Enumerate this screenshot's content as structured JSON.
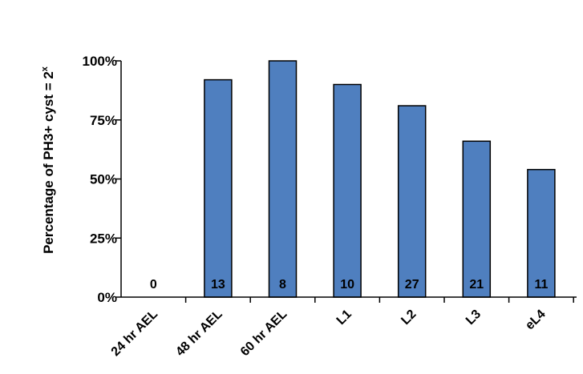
{
  "chart_data": {
    "type": "bar",
    "title": "",
    "xlabel": "",
    "ylabel": "Percentage of PH3+ cyst = 2",
    "ylabel_superscript": "x",
    "categories": [
      "24 hr AEL",
      "48 hr AEL",
      "60 hr AEL",
      "L1",
      "L2",
      "L3",
      "eL4"
    ],
    "values": [
      0,
      92,
      100,
      90,
      81,
      66,
      54
    ],
    "value_unit": "%",
    "bar_labels": [
      "0",
      "13",
      "8",
      "10",
      "27",
      "21",
      "11"
    ],
    "ylim": [
      0,
      100
    ],
    "yticks": [
      0,
      25,
      50,
      75,
      100
    ],
    "ytick_labels": [
      "0%",
      "25%",
      "50%",
      "75%",
      "100%"
    ],
    "grid": false,
    "legend": "none",
    "colors": {
      "bar_fill": "#4f7fbf",
      "bar_stroke": "#000000",
      "axis": "#000000"
    }
  }
}
